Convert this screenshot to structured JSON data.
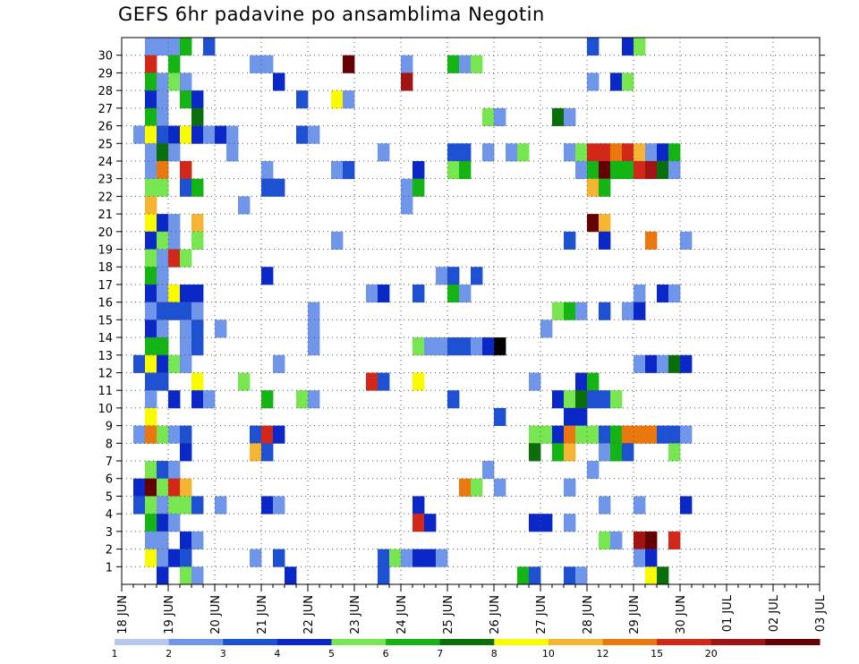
{
  "chart_data": {
    "type": "heatmap",
    "title": "GEFS 6hr padavine po ansamblima Negotin",
    "y_ticks": [
      "1",
      "2",
      "3",
      "4",
      "5",
      "6",
      "7",
      "8",
      "9",
      "10",
      "11",
      "12",
      "13",
      "14",
      "15",
      "16",
      "17",
      "18",
      "19",
      "20",
      "21",
      "22",
      "23",
      "24",
      "25",
      "26",
      "27",
      "28",
      "29",
      "30"
    ],
    "ylim": [
      0,
      30
    ],
    "x_ticks": [
      "18 JUN",
      "19 JUN",
      "20 JUN",
      "21 JUN",
      "22 JUN",
      "23 JUN",
      "24 JUN",
      "25 JUN",
      "26 JUN",
      "27 JUN",
      "28 JUN",
      "29 JUN",
      "30 JUN",
      "01 JUL",
      "02 JUL",
      "03 JUL"
    ],
    "x_start": "18 JUN 00Z",
    "x_step_hours": 6,
    "grid": true,
    "colorbar": {
      "levels": [
        "1",
        "2",
        "3",
        "4",
        "5",
        "6",
        "7",
        "8",
        "10",
        "12",
        "15",
        "20"
      ],
      "colors": [
        "#b4c8f0",
        "#6f96e8",
        "#1e50d2",
        "#0a28c8",
        "#78e650",
        "#14b414",
        "#0a6e0a",
        "#fafa00",
        "#f5b432",
        "#eb780f",
        "#d22819",
        "#a01414",
        "#640000"
      ]
    },
    "cells": [
      [
        30,
        2,
        1
      ],
      [
        30,
        3,
        1
      ],
      [
        30,
        4,
        1
      ],
      [
        30,
        5,
        5
      ],
      [
        30,
        7,
        2
      ],
      [
        30,
        40,
        2
      ],
      [
        30,
        43,
        3
      ],
      [
        30,
        44,
        4
      ],
      [
        29,
        2,
        10
      ],
      [
        29,
        4,
        5
      ],
      [
        29,
        11,
        1
      ],
      [
        29,
        12,
        1
      ],
      [
        29,
        19,
        12
      ],
      [
        29,
        24,
        1
      ],
      [
        29,
        28,
        5
      ],
      [
        29,
        29,
        1
      ],
      [
        29,
        30,
        4
      ],
      [
        28,
        2,
        5
      ],
      [
        28,
        3,
        1
      ],
      [
        28,
        4,
        4
      ],
      [
        28,
        5,
        1
      ],
      [
        28,
        13,
        3
      ],
      [
        28,
        24,
        11
      ],
      [
        28,
        40,
        1
      ],
      [
        28,
        42,
        3
      ],
      [
        28,
        43,
        4
      ],
      [
        27,
        2,
        3
      ],
      [
        27,
        3,
        1
      ],
      [
        27,
        5,
        5
      ],
      [
        27,
        6,
        3
      ],
      [
        27,
        15,
        2
      ],
      [
        27,
        18,
        7
      ],
      [
        27,
        19,
        1
      ],
      [
        26,
        2,
        5
      ],
      [
        26,
        3,
        1
      ],
      [
        26,
        6,
        6
      ],
      [
        26,
        31,
        4
      ],
      [
        26,
        32,
        1
      ],
      [
        26,
        37,
        6
      ],
      [
        26,
        38,
        1
      ],
      [
        25,
        1,
        1
      ],
      [
        25,
        2,
        7
      ],
      [
        25,
        3,
        2
      ],
      [
        25,
        4,
        3
      ],
      [
        25,
        5,
        7
      ],
      [
        25,
        6,
        3
      ],
      [
        25,
        7,
        1
      ],
      [
        25,
        8,
        3
      ],
      [
        25,
        9,
        1
      ],
      [
        25,
        15,
        2
      ],
      [
        25,
        16,
        1
      ],
      [
        24,
        2,
        1
      ],
      [
        24,
        3,
        6
      ],
      [
        24,
        4,
        1
      ],
      [
        24,
        9,
        1
      ],
      [
        24,
        22,
        1
      ],
      [
        24,
        28,
        2
      ],
      [
        24,
        29,
        2
      ],
      [
        24,
        31,
        1
      ],
      [
        24,
        33,
        1
      ],
      [
        24,
        34,
        4
      ],
      [
        24,
        38,
        1
      ],
      [
        24,
        39,
        4
      ],
      [
        24,
        40,
        10
      ],
      [
        24,
        41,
        10
      ],
      [
        24,
        42,
        9
      ],
      [
        24,
        43,
        10
      ],
      [
        24,
        44,
        8
      ],
      [
        24,
        45,
        1
      ],
      [
        24,
        46,
        3
      ],
      [
        24,
        47,
        5
      ],
      [
        23,
        2,
        1
      ],
      [
        23,
        3,
        9
      ],
      [
        23,
        5,
        10
      ],
      [
        23,
        12,
        1
      ],
      [
        23,
        18,
        1
      ],
      [
        23,
        19,
        2
      ],
      [
        23,
        25,
        3
      ],
      [
        23,
        28,
        4
      ],
      [
        23,
        29,
        5
      ],
      [
        23,
        39,
        1
      ],
      [
        23,
        40,
        5
      ],
      [
        23,
        41,
        12
      ],
      [
        23,
        42,
        5
      ],
      [
        23,
        43,
        5
      ],
      [
        23,
        44,
        10
      ],
      [
        23,
        45,
        11
      ],
      [
        23,
        46,
        6
      ],
      [
        23,
        47,
        1
      ],
      [
        22,
        2,
        4
      ],
      [
        22,
        3,
        4
      ],
      [
        22,
        5,
        2
      ],
      [
        22,
        6,
        5
      ],
      [
        22,
        12,
        2
      ],
      [
        22,
        13,
        2
      ],
      [
        22,
        24,
        1
      ],
      [
        22,
        25,
        5
      ],
      [
        22,
        40,
        8
      ],
      [
        22,
        41,
        5
      ],
      [
        21,
        2,
        8
      ],
      [
        21,
        10,
        1
      ],
      [
        21,
        24,
        1
      ],
      [
        20,
        2,
        7
      ],
      [
        20,
        3,
        3
      ],
      [
        20,
        4,
        1
      ],
      [
        20,
        6,
        8
      ],
      [
        20,
        40,
        12
      ],
      [
        20,
        41,
        8
      ],
      [
        19,
        2,
        3
      ],
      [
        19,
        3,
        4
      ],
      [
        19,
        4,
        1
      ],
      [
        19,
        6,
        4
      ],
      [
        19,
        18,
        1
      ],
      [
        19,
        38,
        2
      ],
      [
        19,
        41,
        3
      ],
      [
        19,
        45,
        9
      ],
      [
        19,
        48,
        1
      ],
      [
        18,
        2,
        4
      ],
      [
        18,
        3,
        1
      ],
      [
        18,
        4,
        10
      ],
      [
        18,
        5,
        4
      ],
      [
        17,
        2,
        5
      ],
      [
        17,
        3,
        1
      ],
      [
        17,
        12,
        3
      ],
      [
        17,
        27,
        1
      ],
      [
        17,
        28,
        2
      ],
      [
        17,
        30,
        2
      ],
      [
        16,
        2,
        3
      ],
      [
        16,
        3,
        1
      ],
      [
        16,
        4,
        7
      ],
      [
        16,
        5,
        3
      ],
      [
        16,
        6,
        3
      ],
      [
        16,
        21,
        1
      ],
      [
        16,
        22,
        3
      ],
      [
        16,
        25,
        2
      ],
      [
        16,
        28,
        5
      ],
      [
        16,
        29,
        1
      ],
      [
        16,
        44,
        1
      ],
      [
        16,
        46,
        3
      ],
      [
        16,
        47,
        1
      ],
      [
        15,
        2,
        1
      ],
      [
        15,
        3,
        2
      ],
      [
        15,
        4,
        2
      ],
      [
        15,
        5,
        2
      ],
      [
        15,
        6,
        1
      ],
      [
        15,
        16,
        1
      ],
      [
        15,
        37,
        4
      ],
      [
        15,
        38,
        5
      ],
      [
        15,
        39,
        1
      ],
      [
        15,
        41,
        2
      ],
      [
        15,
        43,
        1
      ],
      [
        15,
        44,
        3
      ],
      [
        14,
        2,
        3
      ],
      [
        14,
        3,
        1
      ],
      [
        14,
        5,
        1
      ],
      [
        14,
        6,
        2
      ],
      [
        14,
        8,
        1
      ],
      [
        14,
        16,
        1
      ],
      [
        14,
        36,
        1
      ],
      [
        13,
        2,
        5
      ],
      [
        13,
        3,
        5
      ],
      [
        13,
        5,
        1
      ],
      [
        13,
        6,
        2
      ],
      [
        13,
        16,
        1
      ],
      [
        13,
        25,
        4
      ],
      [
        13,
        26,
        1
      ],
      [
        13,
        27,
        1
      ],
      [
        13,
        28,
        2
      ],
      [
        13,
        29,
        2
      ],
      [
        13,
        30,
        1
      ],
      [
        13,
        31,
        3
      ],
      [
        13,
        32,
        13
      ],
      [
        12,
        1,
        2
      ],
      [
        12,
        2,
        7
      ],
      [
        12,
        3,
        3
      ],
      [
        12,
        4,
        4
      ],
      [
        12,
        5,
        1
      ],
      [
        12,
        13,
        1
      ],
      [
        12,
        44,
        1
      ],
      [
        12,
        45,
        3
      ],
      [
        12,
        46,
        1
      ],
      [
        12,
        47,
        6
      ],
      [
        12,
        48,
        3
      ],
      [
        11,
        2,
        2
      ],
      [
        11,
        3,
        2
      ],
      [
        11,
        6,
        7
      ],
      [
        11,
        10,
        4
      ],
      [
        11,
        21,
        10
      ],
      [
        11,
        22,
        2
      ],
      [
        11,
        25,
        7
      ],
      [
        11,
        35,
        1
      ],
      [
        11,
        39,
        3
      ],
      [
        11,
        40,
        5
      ],
      [
        10,
        2,
        1
      ],
      [
        10,
        4,
        3
      ],
      [
        10,
        6,
        3
      ],
      [
        10,
        7,
        1
      ],
      [
        10,
        12,
        5
      ],
      [
        10,
        15,
        4
      ],
      [
        10,
        16,
        1
      ],
      [
        10,
        28,
        2
      ],
      [
        10,
        37,
        3
      ],
      [
        10,
        38,
        4
      ],
      [
        10,
        39,
        6
      ],
      [
        10,
        40,
        2
      ],
      [
        10,
        41,
        2
      ],
      [
        10,
        42,
        4
      ],
      [
        9,
        2,
        7
      ],
      [
        9,
        32,
        2
      ],
      [
        9,
        38,
        3
      ],
      [
        9,
        39,
        3
      ],
      [
        8,
        1,
        1
      ],
      [
        8,
        2,
        9
      ],
      [
        8,
        3,
        4
      ],
      [
        8,
        4,
        1
      ],
      [
        8,
        5,
        2
      ],
      [
        8,
        11,
        2
      ],
      [
        8,
        12,
        10
      ],
      [
        8,
        13,
        3
      ],
      [
        8,
        35,
        4
      ],
      [
        8,
        36,
        4
      ],
      [
        8,
        37,
        3
      ],
      [
        8,
        38,
        9
      ],
      [
        8,
        39,
        4
      ],
      [
        8,
        40,
        4
      ],
      [
        8,
        41,
        2
      ],
      [
        8,
        42,
        5
      ],
      [
        8,
        43,
        9
      ],
      [
        8,
        44,
        9
      ],
      [
        8,
        45,
        9
      ],
      [
        8,
        46,
        2
      ],
      [
        8,
        47,
        2
      ],
      [
        8,
        48,
        1
      ],
      [
        7,
        5,
        3
      ],
      [
        7,
        11,
        8
      ],
      [
        7,
        12,
        2
      ],
      [
        7,
        35,
        6
      ],
      [
        7,
        37,
        5
      ],
      [
        7,
        38,
        8
      ],
      [
        7,
        41,
        1
      ],
      [
        7,
        42,
        5
      ],
      [
        7,
        43,
        2
      ],
      [
        7,
        47,
        4
      ],
      [
        6,
        2,
        4
      ],
      [
        6,
        3,
        2
      ],
      [
        6,
        4,
        1
      ],
      [
        6,
        31,
        1
      ],
      [
        6,
        40,
        1
      ],
      [
        5,
        1,
        3
      ],
      [
        5,
        2,
        12
      ],
      [
        5,
        3,
        4
      ],
      [
        5,
        4,
        10
      ],
      [
        5,
        5,
        8
      ],
      [
        5,
        29,
        9
      ],
      [
        5,
        30,
        4
      ],
      [
        5,
        32,
        1
      ],
      [
        5,
        38,
        1
      ],
      [
        4,
        1,
        2
      ],
      [
        4,
        2,
        4
      ],
      [
        4,
        3,
        1
      ],
      [
        4,
        4,
        4
      ],
      [
        4,
        5,
        4
      ],
      [
        4,
        6,
        2
      ],
      [
        4,
        8,
        1
      ],
      [
        4,
        12,
        3
      ],
      [
        4,
        13,
        1
      ],
      [
        4,
        25,
        3
      ],
      [
        4,
        41,
        1
      ],
      [
        4,
        44,
        1
      ],
      [
        4,
        48,
        3
      ],
      [
        3,
        2,
        5
      ],
      [
        3,
        3,
        3
      ],
      [
        3,
        4,
        1
      ],
      [
        3,
        25,
        10
      ],
      [
        3,
        26,
        3
      ],
      [
        3,
        35,
        3
      ],
      [
        3,
        36,
        3
      ],
      [
        3,
        38,
        1
      ],
      [
        2,
        2,
        1
      ],
      [
        2,
        3,
        1
      ],
      [
        2,
        5,
        3
      ],
      [
        2,
        6,
        1
      ],
      [
        2,
        41,
        4
      ],
      [
        2,
        42,
        1
      ],
      [
        2,
        44,
        11
      ],
      [
        2,
        45,
        12
      ],
      [
        2,
        47,
        10
      ],
      [
        1,
        2,
        7
      ],
      [
        1,
        3,
        1
      ],
      [
        1,
        4,
        3
      ],
      [
        1,
        5,
        2
      ],
      [
        1,
        11,
        1
      ],
      [
        1,
        13,
        2
      ],
      [
        1,
        22,
        2
      ],
      [
        1,
        23,
        4
      ],
      [
        1,
        24,
        1
      ],
      [
        1,
        25,
        3
      ],
      [
        1,
        26,
        3
      ],
      [
        1,
        27,
        1
      ],
      [
        1,
        44,
        1
      ],
      [
        1,
        45,
        3
      ],
      [
        0,
        3,
        3
      ],
      [
        0,
        5,
        4
      ],
      [
        0,
        6,
        1
      ],
      [
        0,
        14,
        3
      ],
      [
        0,
        22,
        2
      ],
      [
        0,
        34,
        5
      ],
      [
        0,
        35,
        2
      ],
      [
        0,
        38,
        2
      ],
      [
        0,
        39,
        1
      ],
      [
        0,
        45,
        7
      ],
      [
        0,
        46,
        6
      ]
    ]
  }
}
